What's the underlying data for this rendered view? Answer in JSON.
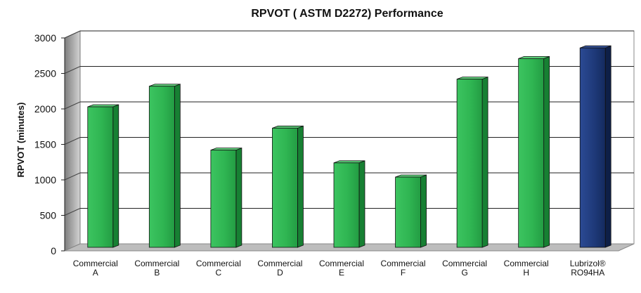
{
  "chart_data": {
    "type": "bar",
    "title": "RPVOT ( ASTM D2272) Performance",
    "xlabel": "",
    "ylabel": "RPVOT (minutes)",
    "ylim": [
      0,
      3000
    ],
    "yticks": [
      0,
      500,
      1000,
      1500,
      2000,
      2500,
      3000
    ],
    "grid": true,
    "legend": "none",
    "categories": [
      [
        "Commercial",
        "A"
      ],
      [
        "Commercial",
        "B"
      ],
      [
        "Commercial",
        "C"
      ],
      [
        "Commercial",
        "D"
      ],
      [
        "Commercial",
        "E"
      ],
      [
        "Commercial",
        "F"
      ],
      [
        "Commercial",
        "G"
      ],
      [
        "Commercial",
        "H"
      ],
      [
        "Lubrizol®",
        "RO94HA"
      ]
    ],
    "values": [
      1980,
      2270,
      1370,
      1680,
      1190,
      990,
      2370,
      2660,
      2810
    ],
    "colors": [
      "#2db34f",
      "#2db34f",
      "#2db34f",
      "#2db34f",
      "#2db34f",
      "#2db34f",
      "#2db34f",
      "#2db34f",
      "#1f3a7a"
    ]
  }
}
